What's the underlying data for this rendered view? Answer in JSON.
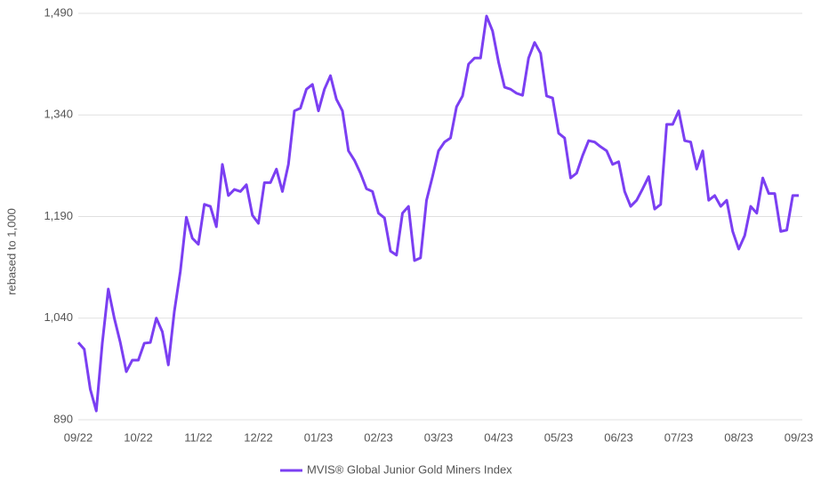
{
  "chart_data": {
    "type": "line",
    "y_label": "rebased to 1,000",
    "categories": [
      "09/22",
      null,
      null,
      null,
      null,
      null,
      null,
      null,
      null,
      null,
      "10/22",
      null,
      null,
      null,
      null,
      null,
      null,
      null,
      null,
      null,
      "11/22",
      null,
      null,
      null,
      null,
      null,
      null,
      null,
      null,
      null,
      "12/22",
      null,
      null,
      null,
      null,
      null,
      null,
      null,
      null,
      null,
      "01/23",
      null,
      null,
      null,
      null,
      null,
      null,
      null,
      null,
      null,
      "02/23",
      null,
      null,
      null,
      null,
      null,
      null,
      null,
      null,
      null,
      "03/23",
      null,
      null,
      null,
      null,
      null,
      null,
      null,
      null,
      null,
      "04/23",
      null,
      null,
      null,
      null,
      null,
      null,
      null,
      null,
      null,
      "05/23",
      null,
      null,
      null,
      null,
      null,
      null,
      null,
      null,
      null,
      "06/23",
      null,
      null,
      null,
      null,
      null,
      null,
      null,
      null,
      null,
      "07/23",
      null,
      null,
      null,
      null,
      null,
      null,
      null,
      null,
      null,
      "08/23",
      null,
      null,
      null,
      null,
      null,
      null,
      null,
      null,
      null,
      "09/23"
    ],
    "series": [
      {
        "name": "MVIS® Global Junior Gold Miners Index",
        "color": "#7b3ff2",
        "values": [
          1004,
          994,
          935,
          903,
          1003,
          1083,
          1040,
          1004,
          961,
          978,
          978,
          1003,
          1004,
          1040,
          1020,
          971,
          1050,
          1109,
          1189,
          1158,
          1149,
          1208,
          1205,
          1175,
          1267,
          1221,
          1230,
          1227,
          1237,
          1192,
          1180,
          1240,
          1240,
          1260,
          1227,
          1267,
          1346,
          1350,
          1378,
          1385,
          1346,
          1378,
          1398,
          1363,
          1346,
          1287,
          1273,
          1254,
          1231,
          1227,
          1195,
          1188,
          1139,
          1133,
          1195,
          1205,
          1125,
          1129,
          1214,
          1249,
          1287,
          1300,
          1306,
          1352,
          1368,
          1415,
          1424,
          1424,
          1486,
          1464,
          1418,
          1381,
          1378,
          1372,
          1369,
          1424,
          1447,
          1431,
          1368,
          1365,
          1313,
          1306,
          1247,
          1254,
          1280,
          1302,
          1300,
          1293,
          1287,
          1267,
          1271,
          1227,
          1205,
          1214,
          1231,
          1249,
          1201,
          1208,
          1326,
          1326,
          1346,
          1302,
          1300,
          1260,
          1287,
          1214,
          1221,
          1205,
          1214,
          1168,
          1142,
          1162,
          1205,
          1195,
          1247,
          1224,
          1224,
          1168,
          1170,
          1221,
          1221
        ]
      }
    ],
    "ylim": [
      890,
      1490
    ],
    "yticks": [
      890,
      {
        "value": 1040,
        "label": "1,040"
      },
      {
        "value": 1190,
        "label": "1,190"
      },
      {
        "value": 1340,
        "label": "1,340"
      },
      {
        "value": 1490,
        "label": "1,490"
      }
    ],
    "grid": true,
    "legend": "bottom"
  }
}
